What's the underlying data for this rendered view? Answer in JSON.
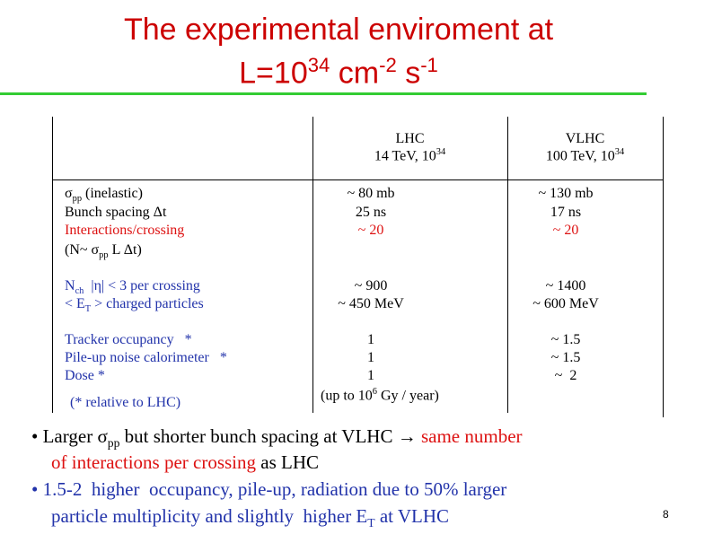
{
  "title": {
    "line1": "The experimental enviroment at",
    "line2": [
      "L=10",
      "34",
      " cm",
      "-2",
      " s",
      "-1"
    ]
  },
  "table": {
    "header": {
      "lhc": [
        "LHC",
        "14 TeV, 10",
        "34"
      ],
      "vlhc": [
        "VLHC",
        "100 TeV, 10",
        "34"
      ]
    },
    "rows": [
      {
        "label": [
          "σ",
          "pp",
          " (inelastic)"
        ],
        "lhc": "~ 80 mb",
        "vlhc": "~ 130 mb"
      },
      {
        "label": [
          "Bunch spacing Δt"
        ],
        "lhc": "25 ns",
        "vlhc": "17 ns"
      },
      {
        "label": [
          "Interactions/crossing"
        ],
        "lhc": "~ 20",
        "vlhc": "~ 20"
      },
      {
        "label": [
          "(N~ σ",
          "pp",
          " L Δt)"
        ]
      },
      {
        "label": [
          "N",
          "ch",
          "  |η| < 3 per crossing"
        ],
        "lhc": "~ 900",
        "vlhc": "~ 1400"
      },
      {
        "label": [
          "< E",
          "T",
          " > charged particles"
        ],
        "lhc": "~ 450 MeV",
        "vlhc": "~ 600 MeV"
      },
      {
        "label": [
          "Tracker occupancy   *"
        ],
        "lhc": "1",
        "vlhc": "~ 1.5"
      },
      {
        "label": [
          "Pile-up noise calorimeter   *"
        ],
        "lhc": "1",
        "vlhc": "~ 1.5"
      },
      {
        "label": [
          "Dose *"
        ],
        "lhc": "1",
        "vlhc": "~  2"
      }
    ],
    "footnote": "(* relative to LHC)",
    "dose_note": [
      "(up to 10",
      "6",
      " Gy / year)"
    ]
  },
  "bullets": [
    [
      "Larger ",
      "σ",
      "pp",
      " but shorter bunch spacing at VLHC → ",
      "same number",
      "of interactions per crossing",
      " as LHC"
    ],
    [
      "1.5-2  higher  occupancy, pile-up, radiation due to 50% larger",
      "particle multiplicity and slightly  higher E",
      "T",
      " at VLHC"
    ]
  ],
  "page_number": "8"
}
